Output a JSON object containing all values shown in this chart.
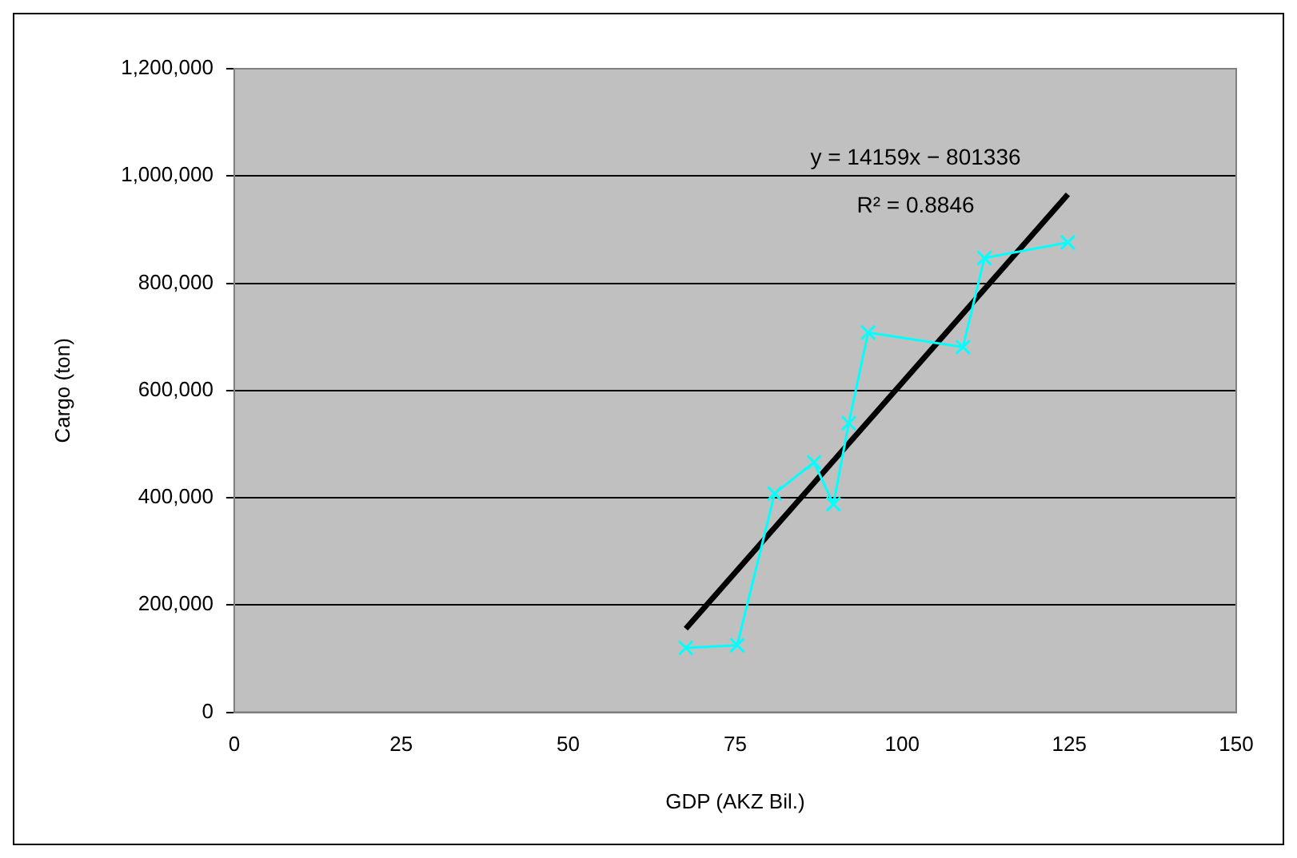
{
  "chart_data": {
    "type": "line",
    "xlabel": "GDP (AKZ Bil.)",
    "ylabel": "Cargo (ton)",
    "xlim": [
      0,
      150
    ],
    "xticks": [
      0,
      25,
      50,
      75,
      100,
      125,
      150
    ],
    "ylim": [
      0,
      1200000
    ],
    "yticks": [
      {
        "value": 0,
        "label": "0"
      },
      {
        "value": 200000,
        "label": "200,000"
      },
      {
        "value": 400000,
        "label": "400,000"
      },
      {
        "value": 600000,
        "label": "600,000"
      },
      {
        "value": 800000,
        "label": "800,000"
      },
      {
        "value": 1000000,
        "label": "1,000,000"
      },
      {
        "value": 1200000,
        "label": "1,200,000"
      }
    ],
    "grid": "y",
    "legend": false,
    "series": [
      {
        "color": "#00ffff",
        "marker": "cross",
        "x": [
          67.6,
          75.3,
          80.9,
          86.8,
          89.7,
          92,
          94.9,
          109.1,
          112.3,
          124.8
        ],
        "values": [
          120000,
          125000,
          408000,
          466000,
          388000,
          539000,
          708000,
          681000,
          847000,
          876000
        ]
      },
      {
        "color": "#000000",
        "marker": "none",
        "x": [
          67.6,
          124.8
        ],
        "values": [
          155800,
          965700
        ]
      }
    ],
    "annotations": [
      "y = 14159x − 801336",
      "R² = 0.8846"
    ]
  }
}
